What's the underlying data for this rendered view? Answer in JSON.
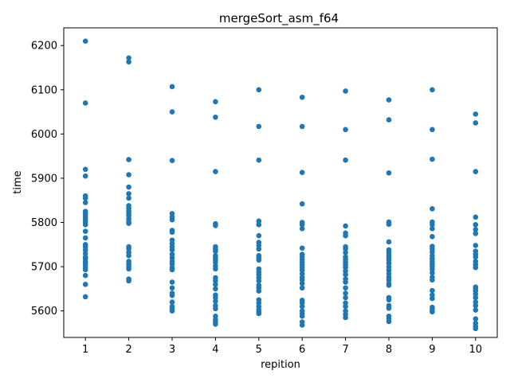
{
  "chart_data": {
    "type": "scatter",
    "title": "mergeSort_asm_f64",
    "xlabel": "repition",
    "ylabel": "time",
    "xlim": [
      0.5,
      10.5
    ],
    "ylim": [
      5540,
      6240
    ],
    "xticks": [
      1,
      2,
      3,
      4,
      5,
      6,
      7,
      8,
      9,
      10
    ],
    "yticks": [
      5600,
      5700,
      5800,
      5900,
      6000,
      6100,
      6200
    ],
    "grid": false,
    "legend": "none",
    "color": "#1f77b4",
    "series": [
      {
        "points": [
          [
            1,
            6210
          ],
          [
            1,
            6070
          ],
          [
            1,
            5920
          ],
          [
            1,
            5905
          ],
          [
            1,
            5860
          ],
          [
            1,
            5855
          ],
          [
            1,
            5845
          ],
          [
            1,
            5825
          ],
          [
            1,
            5820
          ],
          [
            1,
            5815
          ],
          [
            1,
            5810
          ],
          [
            1,
            5805
          ],
          [
            1,
            5800
          ],
          [
            1,
            5795
          ],
          [
            1,
            5780
          ],
          [
            1,
            5765
          ],
          [
            1,
            5750
          ],
          [
            1,
            5745
          ],
          [
            1,
            5738
          ],
          [
            1,
            5730
          ],
          [
            1,
            5722
          ],
          [
            1,
            5718
          ],
          [
            1,
            5712
          ],
          [
            1,
            5708
          ],
          [
            1,
            5703
          ],
          [
            1,
            5698
          ],
          [
            1,
            5693
          ],
          [
            1,
            5680
          ],
          [
            1,
            5660
          ],
          [
            1,
            5632
          ],
          [
            2,
            6172
          ],
          [
            2,
            6163
          ],
          [
            2,
            5942
          ],
          [
            2,
            5908
          ],
          [
            2,
            5880
          ],
          [
            2,
            5865
          ],
          [
            2,
            5855
          ],
          [
            2,
            5838
          ],
          [
            2,
            5832
          ],
          [
            2,
            5826
          ],
          [
            2,
            5820
          ],
          [
            2,
            5815
          ],
          [
            2,
            5808
          ],
          [
            2,
            5802
          ],
          [
            2,
            5798
          ],
          [
            2,
            5745
          ],
          [
            2,
            5740
          ],
          [
            2,
            5732
          ],
          [
            2,
            5725
          ],
          [
            2,
            5712
          ],
          [
            2,
            5706
          ],
          [
            2,
            5700
          ],
          [
            2,
            5695
          ],
          [
            2,
            5672
          ],
          [
            2,
            5668
          ],
          [
            3,
            6107
          ],
          [
            3,
            6050
          ],
          [
            3,
            5940
          ],
          [
            3,
            5820
          ],
          [
            3,
            5812
          ],
          [
            3,
            5806
          ],
          [
            3,
            5782
          ],
          [
            3,
            5778
          ],
          [
            3,
            5760
          ],
          [
            3,
            5752
          ],
          [
            3,
            5745
          ],
          [
            3,
            5738
          ],
          [
            3,
            5728
          ],
          [
            3,
            5720
          ],
          [
            3,
            5712
          ],
          [
            3,
            5706
          ],
          [
            3,
            5698
          ],
          [
            3,
            5693
          ],
          [
            3,
            5665
          ],
          [
            3,
            5652
          ],
          [
            3,
            5640
          ],
          [
            3,
            5635
          ],
          [
            3,
            5620
          ],
          [
            3,
            5610
          ],
          [
            3,
            5605
          ],
          [
            3,
            5600
          ],
          [
            4,
            6073
          ],
          [
            4,
            6038
          ],
          [
            4,
            5915
          ],
          [
            4,
            5797
          ],
          [
            4,
            5793
          ],
          [
            4,
            5745
          ],
          [
            4,
            5740
          ],
          [
            4,
            5735
          ],
          [
            4,
            5725
          ],
          [
            4,
            5720
          ],
          [
            4,
            5715
          ],
          [
            4,
            5710
          ],
          [
            4,
            5702
          ],
          [
            4,
            5695
          ],
          [
            4,
            5675
          ],
          [
            4,
            5668
          ],
          [
            4,
            5660
          ],
          [
            4,
            5650
          ],
          [
            4,
            5636
          ],
          [
            4,
            5630
          ],
          [
            4,
            5622
          ],
          [
            4,
            5612
          ],
          [
            4,
            5605
          ],
          [
            4,
            5588
          ],
          [
            4,
            5580
          ],
          [
            4,
            5575
          ],
          [
            4,
            5570
          ],
          [
            5,
            6100
          ],
          [
            5,
            6017
          ],
          [
            5,
            5941
          ],
          [
            5,
            5803
          ],
          [
            5,
            5795
          ],
          [
            5,
            5770
          ],
          [
            5,
            5755
          ],
          [
            5,
            5748
          ],
          [
            5,
            5740
          ],
          [
            5,
            5725
          ],
          [
            5,
            5720
          ],
          [
            5,
            5715
          ],
          [
            5,
            5695
          ],
          [
            5,
            5688
          ],
          [
            5,
            5682
          ],
          [
            5,
            5675
          ],
          [
            5,
            5668
          ],
          [
            5,
            5658
          ],
          [
            5,
            5652
          ],
          [
            5,
            5645
          ],
          [
            5,
            5625
          ],
          [
            5,
            5618
          ],
          [
            5,
            5610
          ],
          [
            5,
            5603
          ],
          [
            5,
            5598
          ],
          [
            5,
            5594
          ],
          [
            6,
            6083
          ],
          [
            6,
            6017
          ],
          [
            6,
            5913
          ],
          [
            6,
            5842
          ],
          [
            6,
            5800
          ],
          [
            6,
            5795
          ],
          [
            6,
            5786
          ],
          [
            6,
            5742
          ],
          [
            6,
            5728
          ],
          [
            6,
            5722
          ],
          [
            6,
            5716
          ],
          [
            6,
            5710
          ],
          [
            6,
            5704
          ],
          [
            6,
            5698
          ],
          [
            6,
            5692
          ],
          [
            6,
            5684
          ],
          [
            6,
            5676
          ],
          [
            6,
            5670
          ],
          [
            6,
            5662
          ],
          [
            6,
            5652
          ],
          [
            6,
            5624
          ],
          [
            6,
            5618
          ],
          [
            6,
            5610
          ],
          [
            6,
            5600
          ],
          [
            6,
            5594
          ],
          [
            6,
            5588
          ],
          [
            6,
            5575
          ],
          [
            6,
            5568
          ],
          [
            7,
            6097
          ],
          [
            7,
            6010
          ],
          [
            7,
            5941
          ],
          [
            7,
            5792
          ],
          [
            7,
            5776
          ],
          [
            7,
            5770
          ],
          [
            7,
            5745
          ],
          [
            7,
            5740
          ],
          [
            7,
            5732
          ],
          [
            7,
            5722
          ],
          [
            7,
            5716
          ],
          [
            7,
            5710
          ],
          [
            7,
            5704
          ],
          [
            7,
            5698
          ],
          [
            7,
            5690
          ],
          [
            7,
            5682
          ],
          [
            7,
            5672
          ],
          [
            7,
            5665
          ],
          [
            7,
            5652
          ],
          [
            7,
            5640
          ],
          [
            7,
            5630
          ],
          [
            7,
            5618
          ],
          [
            7,
            5610
          ],
          [
            7,
            5600
          ],
          [
            7,
            5592
          ],
          [
            7,
            5585
          ],
          [
            8,
            6077
          ],
          [
            8,
            6032
          ],
          [
            8,
            5912
          ],
          [
            8,
            5801
          ],
          [
            8,
            5796
          ],
          [
            8,
            5756
          ],
          [
            8,
            5738
          ],
          [
            8,
            5732
          ],
          [
            8,
            5726
          ],
          [
            8,
            5720
          ],
          [
            8,
            5715
          ],
          [
            8,
            5708
          ],
          [
            8,
            5700
          ],
          [
            8,
            5692
          ],
          [
            8,
            5684
          ],
          [
            8,
            5676
          ],
          [
            8,
            5670
          ],
          [
            8,
            5662
          ],
          [
            8,
            5658
          ],
          [
            8,
            5630
          ],
          [
            8,
            5625
          ],
          [
            8,
            5612
          ],
          [
            8,
            5606
          ],
          [
            8,
            5588
          ],
          [
            8,
            5582
          ],
          [
            8,
            5576
          ],
          [
            9,
            6100
          ],
          [
            9,
            6010
          ],
          [
            9,
            5943
          ],
          [
            9,
            5831
          ],
          [
            9,
            5801
          ],
          [
            9,
            5795
          ],
          [
            9,
            5786
          ],
          [
            9,
            5768
          ],
          [
            9,
            5746
          ],
          [
            9,
            5740
          ],
          [
            9,
            5733
          ],
          [
            9,
            5725
          ],
          [
            9,
            5718
          ],
          [
            9,
            5712
          ],
          [
            9,
            5706
          ],
          [
            9,
            5700
          ],
          [
            9,
            5694
          ],
          [
            9,
            5686
          ],
          [
            9,
            5676
          ],
          [
            9,
            5670
          ],
          [
            9,
            5646
          ],
          [
            9,
            5636
          ],
          [
            9,
            5628
          ],
          [
            9,
            5608
          ],
          [
            9,
            5603
          ],
          [
            9,
            5598
          ],
          [
            10,
            6045
          ],
          [
            10,
            6025
          ],
          [
            10,
            5915
          ],
          [
            10,
            5812
          ],
          [
            10,
            5795
          ],
          [
            10,
            5784
          ],
          [
            10,
            5775
          ],
          [
            10,
            5748
          ],
          [
            10,
            5735
          ],
          [
            10,
            5728
          ],
          [
            10,
            5722
          ],
          [
            10,
            5712
          ],
          [
            10,
            5705
          ],
          [
            10,
            5698
          ],
          [
            10,
            5654
          ],
          [
            10,
            5650
          ],
          [
            10,
            5645
          ],
          [
            10,
            5638
          ],
          [
            10,
            5630
          ],
          [
            10,
            5620
          ],
          [
            10,
            5612
          ],
          [
            10,
            5602
          ],
          [
            10,
            5582
          ],
          [
            10,
            5572
          ],
          [
            10,
            5565
          ],
          [
            10,
            5560
          ]
        ]
      }
    ]
  }
}
